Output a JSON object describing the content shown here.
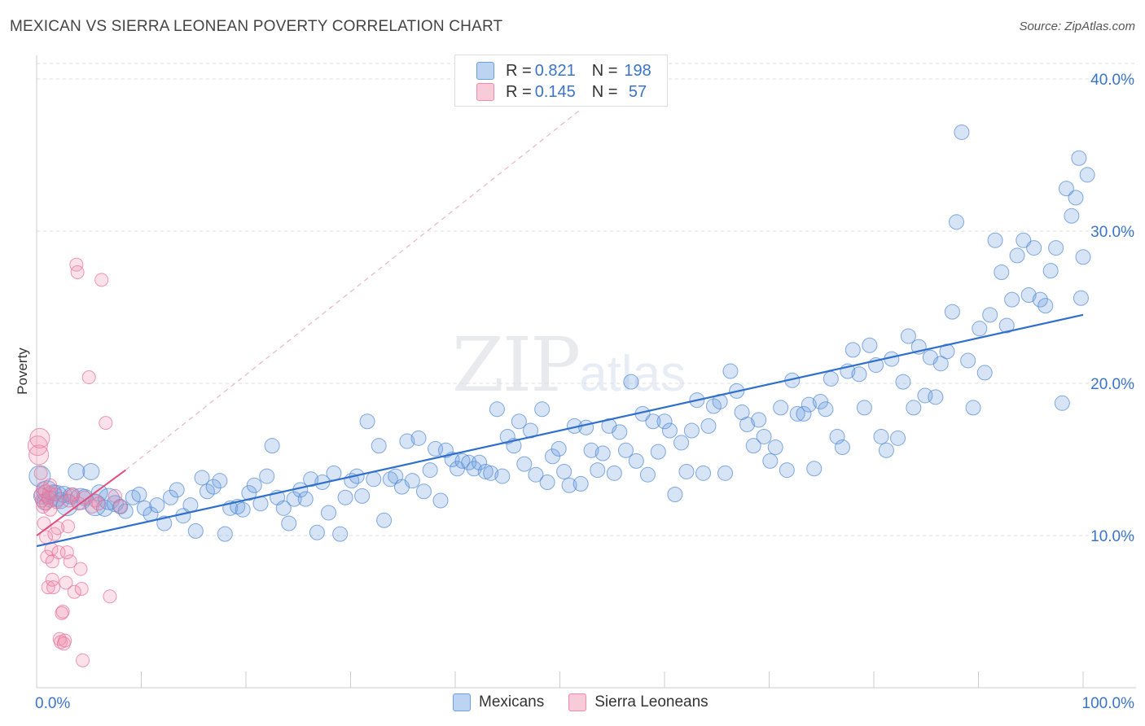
{
  "header": {
    "title": "MEXICAN VS SIERRA LEONEAN POVERTY CORRELATION CHART",
    "source": "Source: ZipAtlas.com"
  },
  "legend_box": {
    "rows": [
      {
        "r_label": "R = ",
        "r_value": "0.821",
        "n_label": "N = ",
        "n_value": "198"
      },
      {
        "r_label": "R = ",
        "r_value": "0.145",
        "n_label": "N = ",
        "n_value": " 57"
      }
    ]
  },
  "bottom_legend": {
    "items": [
      "Mexicans",
      "Sierra Leoneans"
    ]
  },
  "watermark": {
    "zip": "ZIP",
    "atlas": "atlas"
  },
  "colors": {
    "blue": "#6a9fe0",
    "blue_line": "#2f6fcc",
    "pink": "#f08bab",
    "pink_line": "#e0507f",
    "axis_text": "#3a74c9"
  },
  "chart_data": {
    "type": "scatter",
    "title": "MEXICAN VS SIERRA LEONEAN POVERTY CORRELATION CHART",
    "xlabel": "",
    "ylabel": "Poverty",
    "xlim": [
      0,
      100
    ],
    "ylim": [
      0,
      40
    ],
    "x_tick_labels": [
      "0.0%",
      "100.0%"
    ],
    "y_ticks": [
      10,
      20,
      30,
      40
    ],
    "y_tick_labels": [
      "10.0%",
      "20.0%",
      "30.0%",
      "40.0%"
    ],
    "grid": true,
    "series": [
      {
        "name": "Mexicans",
        "color": "#6a9fe0",
        "trend": {
          "x": [
            0,
            100
          ],
          "y": [
            9.3,
            24.5
          ]
        },
        "points": [
          [
            0.3,
            13.9
          ],
          [
            0.5,
            12.6
          ],
          [
            0.8,
            12.2
          ],
          [
            1.0,
            12.9
          ],
          [
            1.3,
            12.4
          ],
          [
            1.6,
            12.8
          ],
          [
            1.9,
            12.6
          ],
          [
            2.3,
            12.3
          ],
          [
            2.6,
            12.7
          ],
          [
            2.9,
            12.0
          ],
          [
            3.3,
            12.6
          ],
          [
            3.8,
            14.2
          ],
          [
            4.2,
            12.4
          ],
          [
            4.6,
            12.5
          ],
          [
            5.2,
            14.2
          ],
          [
            5.6,
            12.0
          ],
          [
            6.0,
            12.8
          ],
          [
            6.5,
            11.8
          ],
          [
            6.9,
            12.4
          ],
          [
            7.5,
            12.1
          ],
          [
            8.0,
            11.9
          ],
          [
            8.5,
            11.6
          ],
          [
            9.2,
            12.5
          ],
          [
            9.8,
            12.7
          ],
          [
            10.3,
            11.8
          ],
          [
            10.9,
            11.4
          ],
          [
            11.5,
            12.0
          ],
          [
            12.2,
            10.8
          ],
          [
            12.8,
            12.5
          ],
          [
            13.4,
            13.0
          ],
          [
            14.0,
            11.3
          ],
          [
            14.7,
            12.0
          ],
          [
            15.2,
            10.3
          ],
          [
            15.8,
            13.8
          ],
          [
            16.3,
            12.9
          ],
          [
            16.9,
            13.2
          ],
          [
            17.5,
            13.6
          ],
          [
            18.0,
            10.1
          ],
          [
            18.5,
            11.8
          ],
          [
            19.2,
            11.9
          ],
          [
            19.7,
            11.7
          ],
          [
            20.3,
            12.8
          ],
          [
            20.8,
            13.3
          ],
          [
            21.4,
            12.1
          ],
          [
            22.0,
            13.9
          ],
          [
            22.5,
            15.9
          ],
          [
            23.0,
            12.5
          ],
          [
            23.6,
            11.8
          ],
          [
            24.1,
            10.8
          ],
          [
            24.6,
            12.4
          ],
          [
            25.2,
            13.0
          ],
          [
            25.7,
            12.4
          ],
          [
            26.2,
            13.7
          ],
          [
            26.8,
            10.2
          ],
          [
            27.3,
            13.5
          ],
          [
            27.9,
            11.5
          ],
          [
            28.4,
            14.1
          ],
          [
            29.0,
            10.1
          ],
          [
            29.5,
            12.5
          ],
          [
            30.1,
            13.6
          ],
          [
            30.6,
            13.9
          ],
          [
            31.1,
            12.6
          ],
          [
            31.6,
            17.5
          ],
          [
            32.2,
            13.7
          ],
          [
            32.7,
            15.9
          ],
          [
            33.2,
            11.0
          ],
          [
            33.8,
            13.7
          ],
          [
            34.3,
            13.9
          ],
          [
            34.9,
            13.2
          ],
          [
            35.4,
            16.2
          ],
          [
            35.9,
            13.6
          ],
          [
            36.5,
            16.4
          ],
          [
            37.0,
            12.9
          ],
          [
            37.6,
            14.3
          ],
          [
            38.1,
            15.7
          ],
          [
            38.6,
            12.3
          ],
          [
            39.1,
            15.6
          ],
          [
            39.7,
            15.0
          ],
          [
            40.2,
            14.4
          ],
          [
            40.7,
            14.9
          ],
          [
            41.3,
            14.8
          ],
          [
            41.8,
            14.4
          ],
          [
            42.3,
            14.8
          ],
          [
            42.9,
            14.2
          ],
          [
            43.4,
            14.1
          ],
          [
            44.0,
            18.3
          ],
          [
            44.5,
            13.9
          ],
          [
            45.0,
            16.5
          ],
          [
            45.6,
            15.9
          ],
          [
            46.1,
            17.5
          ],
          [
            46.6,
            14.7
          ],
          [
            47.2,
            16.9
          ],
          [
            47.7,
            14.0
          ],
          [
            48.3,
            18.3
          ],
          [
            48.8,
            13.5
          ],
          [
            49.3,
            15.2
          ],
          [
            49.9,
            15.7
          ],
          [
            50.4,
            14.2
          ],
          [
            50.9,
            13.3
          ],
          [
            51.4,
            17.2
          ],
          [
            52.0,
            13.4
          ],
          [
            52.5,
            17.1
          ],
          [
            53.0,
            15.6
          ],
          [
            53.6,
            14.3
          ],
          [
            54.1,
            15.4
          ],
          [
            54.7,
            17.2
          ],
          [
            55.2,
            14.1
          ],
          [
            55.7,
            16.8
          ],
          [
            56.3,
            15.6
          ],
          [
            56.8,
            20.1
          ],
          [
            57.3,
            14.9
          ],
          [
            57.9,
            18.0
          ],
          [
            58.4,
            14.0
          ],
          [
            58.9,
            17.5
          ],
          [
            59.4,
            15.5
          ],
          [
            60.0,
            17.5
          ],
          [
            60.5,
            16.9
          ],
          [
            61.0,
            12.7
          ],
          [
            61.6,
            16.1
          ],
          [
            62.1,
            14.2
          ],
          [
            62.6,
            16.9
          ],
          [
            63.1,
            18.9
          ],
          [
            63.7,
            14.1
          ],
          [
            64.2,
            17.2
          ],
          [
            64.7,
            18.5
          ],
          [
            65.3,
            18.8
          ],
          [
            65.8,
            14.1
          ],
          [
            66.3,
            20.8
          ],
          [
            66.9,
            19.5
          ],
          [
            67.4,
            18.1
          ],
          [
            67.9,
            17.3
          ],
          [
            68.5,
            15.9
          ],
          [
            69.0,
            17.6
          ],
          [
            69.5,
            16.5
          ],
          [
            70.1,
            14.9
          ],
          [
            70.6,
            15.8
          ],
          [
            71.1,
            18.4
          ],
          [
            71.7,
            14.3
          ],
          [
            72.2,
            20.2
          ],
          [
            72.7,
            18.0
          ],
          [
            73.3,
            18.0
          ],
          [
            73.8,
            18.6
          ],
          [
            74.3,
            14.4
          ],
          [
            74.9,
            18.8
          ],
          [
            75.4,
            18.3
          ],
          [
            75.9,
            20.3
          ],
          [
            76.5,
            16.5
          ],
          [
            77.0,
            15.8
          ],
          [
            77.5,
            20.8
          ],
          [
            78.0,
            22.2
          ],
          [
            78.6,
            20.6
          ],
          [
            79.1,
            18.4
          ],
          [
            79.6,
            22.5
          ],
          [
            80.2,
            21.2
          ],
          [
            80.7,
            16.5
          ],
          [
            81.2,
            15.6
          ],
          [
            81.7,
            21.6
          ],
          [
            82.3,
            16.4
          ],
          [
            82.8,
            20.1
          ],
          [
            83.3,
            23.1
          ],
          [
            83.8,
            18.4
          ],
          [
            84.3,
            22.4
          ],
          [
            84.9,
            19.2
          ],
          [
            85.4,
            21.7
          ],
          [
            85.9,
            19.1
          ],
          [
            86.4,
            21.3
          ],
          [
            87.0,
            22.1
          ],
          [
            87.5,
            24.7
          ],
          [
            87.9,
            30.6
          ],
          [
            88.4,
            36.5
          ],
          [
            89.0,
            21.5
          ],
          [
            89.5,
            18.4
          ],
          [
            90.1,
            23.6
          ],
          [
            90.6,
            20.7
          ],
          [
            91.1,
            24.5
          ],
          [
            91.6,
            29.4
          ],
          [
            92.2,
            27.3
          ],
          [
            92.7,
            23.8
          ],
          [
            93.2,
            25.5
          ],
          [
            93.7,
            28.4
          ],
          [
            94.3,
            29.4
          ],
          [
            94.8,
            25.8
          ],
          [
            95.3,
            28.9
          ],
          [
            95.9,
            25.5
          ],
          [
            96.4,
            25.1
          ],
          [
            96.9,
            27.4
          ],
          [
            97.4,
            28.9
          ],
          [
            98.0,
            18.7
          ],
          [
            98.4,
            32.8
          ],
          [
            98.9,
            31.0
          ],
          [
            99.3,
            32.2
          ],
          [
            99.6,
            34.8
          ],
          [
            99.8,
            25.6
          ],
          [
            100.0,
            28.3
          ],
          [
            100.4,
            33.7
          ]
        ]
      },
      {
        "name": "Sierra Leoneans",
        "color": "#f08bab",
        "trend": {
          "x": [
            0,
            8.5
          ],
          "y": [
            10.0,
            14.3
          ]
        },
        "trend_extended": {
          "x": [
            8.5,
            52
          ],
          "y": [
            14.3,
            38.0
          ]
        },
        "points": [
          [
            0.1,
            15.9
          ],
          [
            0.2,
            15.3
          ],
          [
            0.3,
            16.4
          ],
          [
            0.4,
            12.7
          ],
          [
            0.5,
            12.3
          ],
          [
            0.6,
            11.9
          ],
          [
            0.6,
            13.1
          ],
          [
            0.7,
            10.8
          ],
          [
            0.8,
            12.9
          ],
          [
            0.9,
            12.1
          ],
          [
            0.9,
            9.9
          ],
          [
            1.0,
            8.6
          ],
          [
            1.1,
            6.6
          ],
          [
            1.1,
            12.5
          ],
          [
            1.2,
            12.8
          ],
          [
            1.3,
            13.3
          ],
          [
            1.3,
            11.7
          ],
          [
            1.4,
            9.1
          ],
          [
            1.5,
            7.1
          ],
          [
            1.5,
            8.3
          ],
          [
            1.6,
            6.6
          ],
          [
            1.7,
            10.1
          ],
          [
            1.8,
            12.7
          ],
          [
            1.9,
            12.2
          ],
          [
            2.0,
            10.5
          ],
          [
            2.1,
            8.9
          ],
          [
            2.2,
            3.2
          ],
          [
            2.3,
            3.0
          ],
          [
            2.4,
            4.9
          ],
          [
            2.5,
            5.0
          ],
          [
            2.6,
            2.9
          ],
          [
            2.7,
            3.1
          ],
          [
            2.8,
            6.9
          ],
          [
            2.9,
            8.9
          ],
          [
            3.0,
            10.6
          ],
          [
            3.1,
            12.3
          ],
          [
            3.2,
            8.3
          ],
          [
            3.3,
            12.6
          ],
          [
            3.5,
            12.7
          ],
          [
            3.6,
            6.3
          ],
          [
            3.8,
            27.8
          ],
          [
            3.9,
            27.3
          ],
          [
            4.0,
            12.1
          ],
          [
            4.2,
            7.8
          ],
          [
            4.3,
            6.5
          ],
          [
            4.4,
            1.8
          ],
          [
            4.6,
            12.5
          ],
          [
            5.0,
            20.4
          ],
          [
            5.3,
            11.9
          ],
          [
            5.6,
            12.3
          ],
          [
            5.9,
            12.1
          ],
          [
            6.2,
            26.8
          ],
          [
            6.6,
            17.4
          ],
          [
            7.0,
            6.0
          ],
          [
            7.5,
            12.6
          ],
          [
            8.0,
            11.9
          ],
          [
            0.4,
            14.1
          ]
        ]
      }
    ]
  }
}
